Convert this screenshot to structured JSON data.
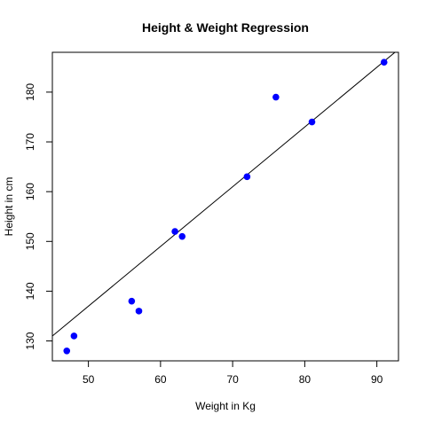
{
  "chart_data": {
    "type": "scatter",
    "title": "Height & Weight Regression",
    "xlabel": "Weight in Kg",
    "ylabel": "Height in cm",
    "xlim": [
      45,
      93
    ],
    "ylim": [
      126,
      188
    ],
    "x_ticks": [
      50,
      60,
      70,
      80,
      90
    ],
    "y_ticks": [
      130,
      140,
      150,
      160,
      170,
      180
    ],
    "grid": false,
    "legend": "none",
    "point_color": "#0000ff",
    "line_color": "#000000",
    "series": [
      {
        "points": [
          {
            "x": 47,
            "y": 128
          },
          {
            "x": 48,
            "y": 131
          },
          {
            "x": 56,
            "y": 138
          },
          {
            "x": 57,
            "y": 136
          },
          {
            "x": 62,
            "y": 152
          },
          {
            "x": 63,
            "y": 151
          },
          {
            "x": 72,
            "y": 163
          },
          {
            "x": 76,
            "y": 179
          },
          {
            "x": 81,
            "y": 174
          },
          {
            "x": 91,
            "y": 186
          }
        ]
      }
    ],
    "regression_line": {
      "intercept": 76.99,
      "slope": 1.2
    }
  }
}
